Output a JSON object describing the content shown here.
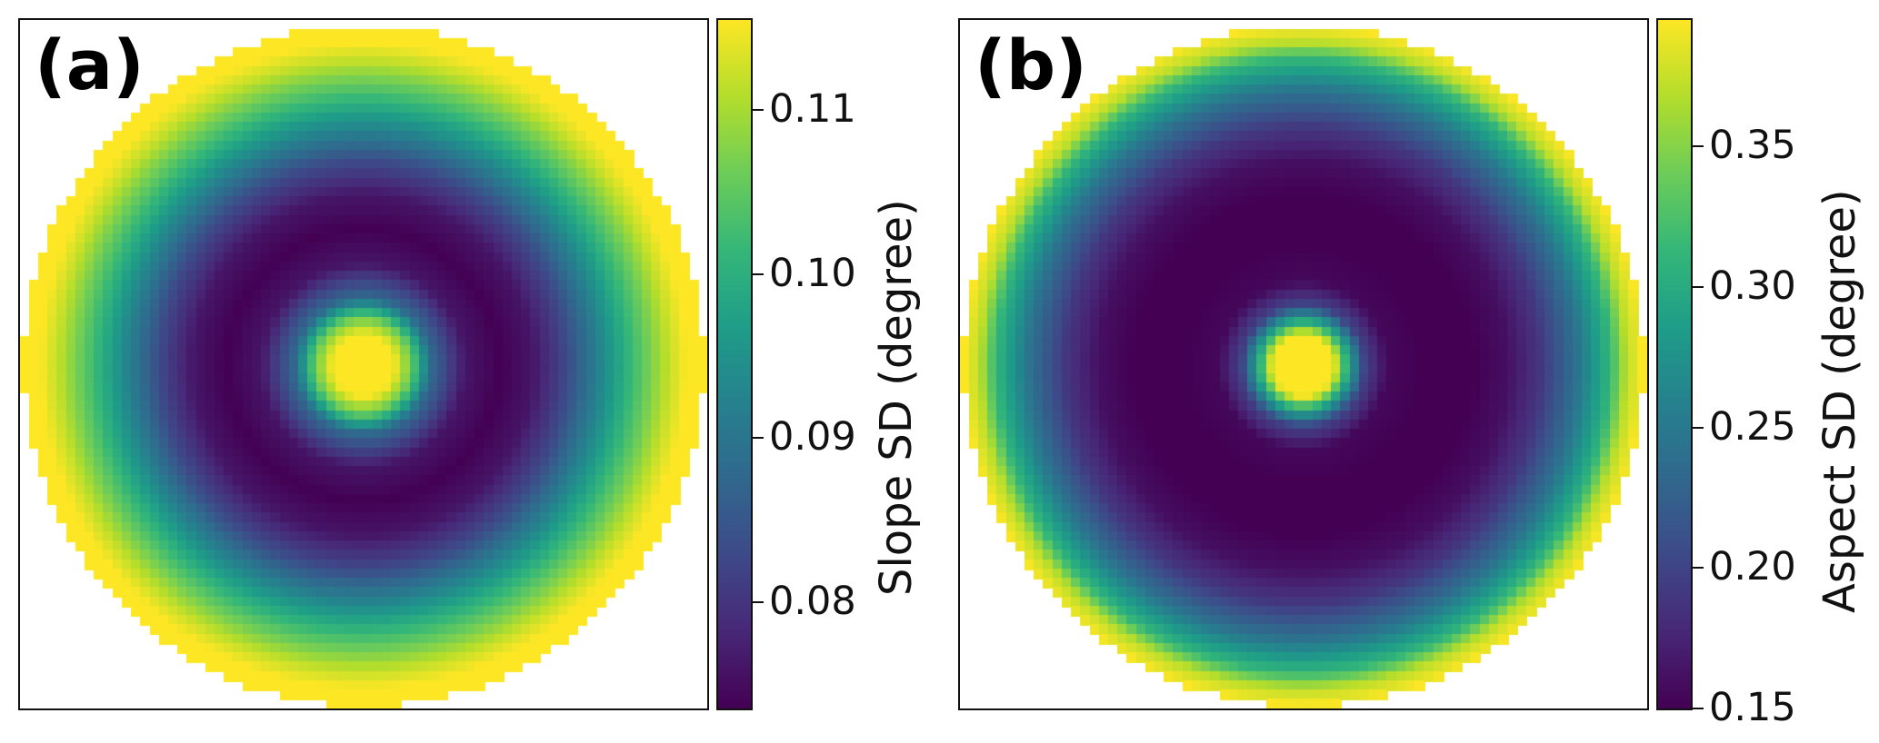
{
  "chart_data": [
    {
      "type": "heatmap",
      "panel_label": "(a)",
      "description_field": "radial_rings",
      "colormap": "viridis",
      "colorbar": {
        "label": "Slope SD (degree)",
        "range": [
          0.0735,
          0.1155
        ],
        "ticks": [
          0.08,
          0.09,
          0.1,
          0.11
        ],
        "tick_labels": [
          "0.08",
          "0.09",
          "0.10",
          "0.11"
        ]
      },
      "radial_profile": {
        "r": [
          0.0,
          0.09,
          0.14,
          0.2,
          0.3,
          0.4,
          0.5,
          0.6,
          0.7,
          0.8,
          0.9,
          0.95,
          1.0
        ],
        "value": [
          0.1155,
          0.1155,
          0.106,
          0.088,
          0.076,
          0.0735,
          0.076,
          0.083,
          0.093,
          0.103,
          0.112,
          0.1155,
          0.1155
        ]
      }
    },
    {
      "type": "heatmap",
      "panel_label": "(b)",
      "description_field": "radial_rings",
      "colormap": "viridis",
      "colorbar": {
        "label": "Aspect SD (degree)",
        "range": [
          0.15,
          0.395
        ],
        "ticks": [
          0.15,
          0.2,
          0.25,
          0.3,
          0.35
        ],
        "tick_labels": [
          "0.15",
          "0.20",
          "0.25",
          "0.30",
          "0.35"
        ]
      },
      "radial_profile": {
        "r": [
          0.0,
          0.09,
          0.13,
          0.18,
          0.25,
          0.35,
          0.5,
          0.6,
          0.7,
          0.8,
          0.9,
          0.95,
          1.0
        ],
        "value": [
          0.395,
          0.395,
          0.3,
          0.2,
          0.155,
          0.15,
          0.15,
          0.16,
          0.19,
          0.24,
          0.31,
          0.37,
          0.395
        ]
      }
    }
  ]
}
